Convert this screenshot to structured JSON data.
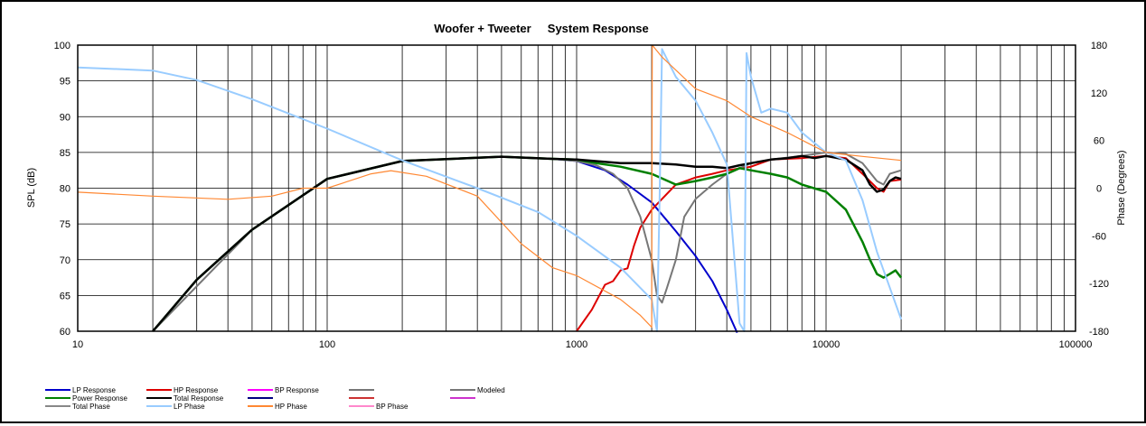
{
  "chart_data": {
    "type": "line",
    "title": "Woofer + Tweeter     System Response",
    "ylabel": "SPL (dB)",
    "y2label": "Phase (Degrees)",
    "xscale": "log",
    "xlim": [
      10,
      100000
    ],
    "ylim": [
      60,
      100
    ],
    "y2lim": [
      -180,
      180
    ],
    "grid": true,
    "xticks": [
      "10",
      "100",
      "1000",
      "10000",
      "100000"
    ],
    "yticks": [
      "60",
      "65",
      "70",
      "75",
      "80",
      "85",
      "90",
      "95",
      "100"
    ],
    "y2ticks": [
      "-180",
      "-120",
      "-60",
      "0",
      "60",
      "120",
      "180"
    ],
    "legend": [
      {
        "label": "LP Response",
        "color": "#0000cc"
      },
      {
        "label": "HP Response",
        "color": "#dd0000"
      },
      {
        "label": "BP Response",
        "color": "#ff00ff"
      },
      {
        "label": "",
        "color": "#777777"
      },
      {
        "label": "Modeled",
        "color": "#777777"
      },
      {
        "label": "Power Response",
        "color": "#008000"
      },
      {
        "label": "Total Response",
        "color": "#000000"
      },
      {
        "label": "",
        "color": "#000080"
      },
      {
        "label": "",
        "color": "#cc3333"
      },
      {
        "label": "",
        "color": "#cc33cc"
      },
      {
        "label": "Total Phase",
        "color": "#888888"
      },
      {
        "label": "LP Phase",
        "color": "#99ccff"
      },
      {
        "label": "HP Phase",
        "color": "#ff8833"
      },
      {
        "label": "BP Phase",
        "color": "#ff88cc"
      }
    ],
    "series": [
      {
        "key": "lp_response",
        "axis": "left",
        "color": "#0000cc",
        "width": 2,
        "x": [
          20,
          30,
          50,
          100,
          200,
          500,
          800,
          1000,
          1300,
          1600,
          2000,
          2500,
          3000,
          3500,
          4000,
          4400
        ],
        "values": [
          60,
          67.2,
          74.2,
          81.3,
          83.8,
          84.4,
          84.1,
          83.8,
          82.5,
          80.5,
          78,
          74,
          70.5,
          67,
          63,
          59.8
        ]
      },
      {
        "key": "hp_response",
        "axis": "left",
        "color": "#dd0000",
        "width": 2,
        "x": [
          1000,
          1150,
          1300,
          1400,
          1500,
          1600,
          1700,
          1800,
          2000,
          2200,
          2500,
          3000,
          3500,
          4000,
          5000,
          6000,
          8000,
          10000,
          12000,
          14000,
          16000,
          17000,
          18000,
          20000
        ],
        "values": [
          60,
          63,
          66.5,
          67,
          68.5,
          68.8,
          72,
          74.5,
          77,
          78.5,
          80.5,
          81.5,
          82,
          82.5,
          83,
          84,
          84.2,
          84.5,
          84.2,
          82,
          80,
          79.5,
          81,
          81.2
        ]
      },
      {
        "key": "modeled",
        "axis": "left",
        "color": "#777777",
        "width": 2,
        "x": [
          20,
          50,
          100,
          200,
          500,
          800,
          1000,
          1200,
          1400,
          1600,
          1800,
          2000,
          2100,
          2200,
          2300,
          2500,
          2700,
          3000,
          3500,
          4000,
          5000,
          6000,
          8000,
          10000,
          12000,
          14000,
          16000,
          17000,
          18000,
          20000
        ],
        "values": [
          60,
          74.2,
          81.3,
          83.8,
          84.4,
          84.1,
          83.8,
          83.2,
          82,
          80,
          76,
          70,
          65,
          64,
          66,
          70,
          76,
          78.5,
          80.5,
          82,
          83.5,
          84,
          84.5,
          85,
          84.8,
          83.5,
          81,
          80.5,
          82,
          82.5
        ]
      },
      {
        "key": "power_response",
        "axis": "left",
        "color": "#008000",
        "width": 2.5,
        "x": [
          20,
          30,
          50,
          100,
          200,
          500,
          800,
          1000,
          1200,
          1500,
          2000,
          2500,
          3000,
          3500,
          4000,
          4500,
          5000,
          6000,
          7000,
          8000,
          10000,
          12000,
          14000,
          15000,
          16000,
          17000,
          18000,
          19000,
          20000
        ],
        "values": [
          60,
          67.2,
          74.2,
          81.3,
          83.8,
          84.4,
          84.1,
          84,
          83.5,
          83,
          82,
          80.5,
          81,
          81.5,
          82,
          82.8,
          82.5,
          82,
          81.5,
          80.5,
          79.5,
          77,
          72.5,
          70,
          68,
          67.5,
          68,
          68.5,
          67.5
        ]
      },
      {
        "key": "total_response",
        "axis": "left",
        "color": "#000000",
        "width": 2.5,
        "x": [
          20,
          30,
          50,
          100,
          200,
          500,
          800,
          1000,
          1500,
          2000,
          2500,
          3000,
          3500,
          4000,
          4500,
          5000,
          6000,
          7000,
          8000,
          9000,
          10000,
          12000,
          14000,
          15000,
          16000,
          17000,
          18000,
          19000,
          20000
        ],
        "values": [
          60,
          67.2,
          74.2,
          81.3,
          83.8,
          84.4,
          84.1,
          84,
          83.5,
          83.5,
          83.3,
          83,
          83,
          82.8,
          83.2,
          83.5,
          84,
          84.2,
          84.5,
          84.2,
          84.5,
          84,
          82.5,
          80.5,
          79.5,
          79.8,
          81,
          81.5,
          81.3
        ]
      },
      {
        "key": "lp_phase",
        "axis": "right",
        "color": "#99ccff",
        "width": 2,
        "x": [
          10,
          20,
          30,
          50,
          100,
          200,
          400,
          700,
          1000,
          1500,
          2000,
          2100,
          2150,
          2200,
          2500,
          3000,
          3500,
          4000,
          4500,
          4700,
          4800,
          5000,
          5500,
          6000,
          7000,
          8000,
          10000,
          12000,
          14000,
          16000,
          20000
        ],
        "values": [
          152,
          148,
          136,
          112,
          75,
          35,
          0,
          -30,
          -60,
          -100,
          -140,
          -180,
          -15,
          175,
          140,
          110,
          70,
          30,
          -170,
          -180,
          170,
          140,
          95,
          100,
          95,
          70,
          45,
          35,
          -15,
          -80,
          -165
        ]
      },
      {
        "key": "hp_phase",
        "axis": "right",
        "color": "#ff8833",
        "width": 1.2,
        "x": [
          10,
          20,
          40,
          60,
          80,
          100,
          150,
          180,
          250,
          400,
          600,
          800,
          1000,
          1500,
          1800,
          2000,
          2010,
          2200,
          3000,
          4000,
          5000,
          7000,
          10000,
          14000,
          20000
        ],
        "values": [
          -5,
          -10,
          -14,
          -10,
          0,
          0,
          18,
          22,
          15,
          -10,
          -70,
          -100,
          -110,
          -140,
          -160,
          -175,
          180,
          165,
          125,
          110,
          90,
          70,
          45,
          40,
          35
        ]
      }
    ]
  }
}
